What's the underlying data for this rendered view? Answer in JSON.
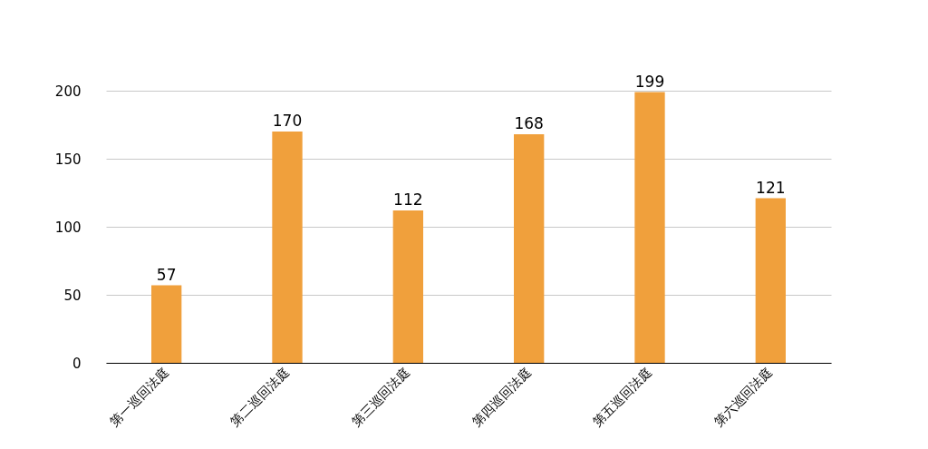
{
  "chart_data": {
    "type": "bar",
    "categories": [
      "第一巡回法庭",
      "第二巡回法庭",
      "第三巡回法庭",
      "第四巡回法庭",
      "第五巡回法庭",
      "第六巡回法庭"
    ],
    "values": [
      57,
      170,
      112,
      168,
      199,
      121
    ],
    "color": "#f0a03c",
    "ylim": [
      0,
      200
    ],
    "yticks": [
      0,
      50,
      100,
      150,
      200
    ],
    "grid": "y",
    "data_labels": true
  }
}
